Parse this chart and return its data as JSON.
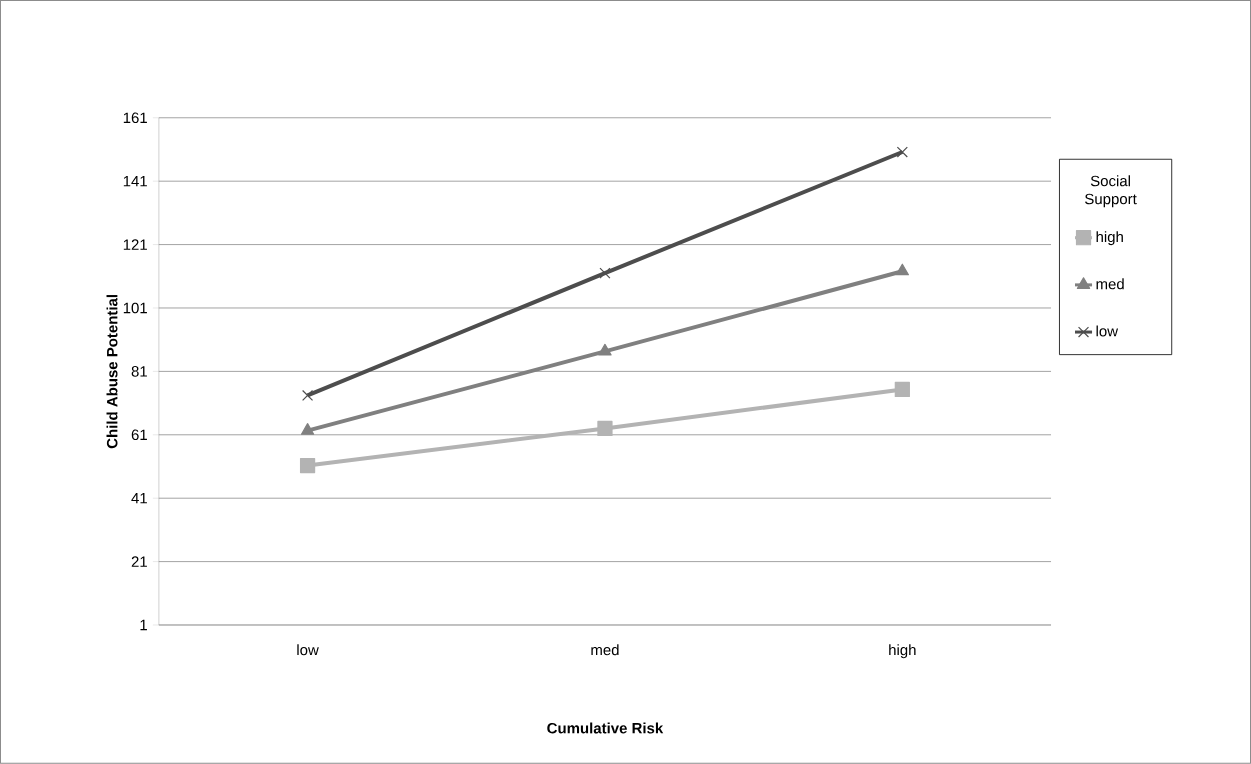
{
  "chart_data": {
    "type": "line",
    "categories": [
      "low",
      "med",
      "high"
    ],
    "xlabel": "Cumulative Risk",
    "ylabel": "Child Abuse Potential",
    "legend_title": "Social Support",
    "series": [
      {
        "name": "high",
        "color": "#b3b3b3",
        "marker": "square",
        "values": [
          51.3,
          63,
          75.3
        ]
      },
      {
        "name": "med",
        "color": "#808080",
        "marker": "triangle",
        "values": [
          62.3,
          87.3,
          112.6
        ]
      },
      {
        "name": "low",
        "color": "#4d4d4d",
        "marker": "cross",
        "values": [
          73.4,
          112,
          150.2
        ]
      }
    ],
    "ylim": [
      1,
      161
    ],
    "yticks": [
      1,
      21,
      41,
      61,
      81,
      101,
      121,
      141,
      161
    ],
    "grid": "y",
    "legend": "right"
  }
}
